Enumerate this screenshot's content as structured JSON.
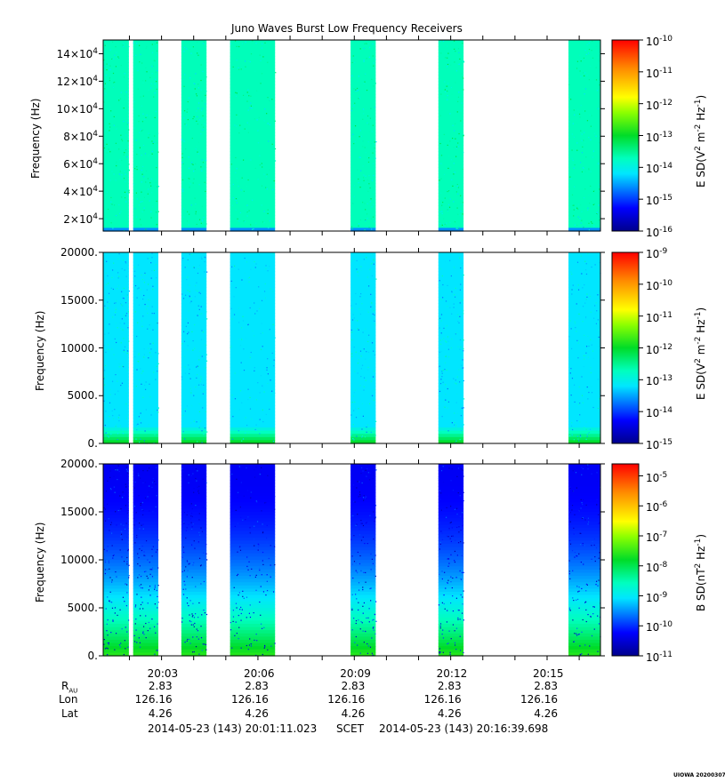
{
  "chart_data": {
    "title": "Juno Waves Burst Low Frequency Receivers",
    "type": "heatmap",
    "time_axis": {
      "tick_labels": [
        "20:03",
        "20:06",
        "20:09",
        "20:12",
        "20:15"
      ],
      "range_seconds": [
        "20:01:11.023",
        "20:16:39.698"
      ]
    },
    "data_blocks": [
      {
        "start": "20:01:11",
        "end": "20:01:59"
      },
      {
        "start": "20:02:07",
        "end": "20:02:54"
      },
      {
        "start": "20:03:37",
        "end": "20:04:24"
      },
      {
        "start": "20:05:08",
        "end": "20:06:32"
      },
      {
        "start": "20:08:53",
        "end": "20:09:40"
      },
      {
        "start": "20:11:37",
        "end": "20:12:24"
      },
      {
        "start": "20:15:40",
        "end": "20:16:39"
      }
    ],
    "panels": [
      {
        "ylabel": "Frequency (Hz)",
        "yticks": [
          {
            "value": 20000,
            "mant": "2",
            "exp": "4"
          },
          {
            "value": 40000,
            "mant": "4",
            "exp": "4"
          },
          {
            "value": 60000,
            "mant": "6",
            "exp": "4"
          },
          {
            "value": 80000,
            "mant": "8",
            "exp": "4"
          },
          {
            "value": 100000,
            "mant": "10",
            "exp": "4"
          },
          {
            "value": 120000,
            "mant": "12",
            "exp": "4"
          },
          {
            "value": 140000,
            "mant": "14",
            "exp": "4"
          }
        ],
        "ylim": [
          11000,
          150000
        ],
        "colorbar_label": "E SD(V^2 m^-2 Hz^-1)",
        "colorbar_exps": [
          "-10",
          "-11",
          "-12",
          "-13",
          "-14",
          "-15",
          "-16"
        ],
        "colorbar_range_exp": [
          -16,
          -10
        ],
        "mean_exp": -13.7
      },
      {
        "ylabel": "Frequency (Hz)",
        "yticks": [
          {
            "value": 0,
            "label": "0."
          },
          {
            "value": 5000,
            "label": "5000."
          },
          {
            "value": 10000,
            "label": "10000."
          },
          {
            "value": 15000,
            "label": "15000."
          },
          {
            "value": 20000,
            "label": "20000."
          }
        ],
        "ylim": [
          0,
          20000
        ],
        "colorbar_label": "E SD(V^2 m^-2 Hz^-1)",
        "colorbar_exps": [
          "-9",
          "-10",
          "-11",
          "-12",
          "-13",
          "-14",
          "-15"
        ],
        "colorbar_range_exp": [
          -15,
          -9
        ],
        "mean_exp": -13.2
      },
      {
        "ylabel": "Frequency (Hz)",
        "yticks": [
          {
            "value": 0,
            "label": "0."
          },
          {
            "value": 5000,
            "label": "5000."
          },
          {
            "value": 10000,
            "label": "10000."
          },
          {
            "value": 15000,
            "label": "15000."
          },
          {
            "value": 20000,
            "label": "20000."
          }
        ],
        "ylim": [
          0,
          20000
        ],
        "colorbar_label": "B SD(nT^2 Hz^-1)",
        "colorbar_exps": [
          "-5",
          "-6",
          "-7",
          "-8",
          "-9",
          "-10",
          "-11"
        ],
        "colorbar_range_exp": [
          -11,
          -4.6
        ],
        "mean_exp": -10.3
      }
    ],
    "ephemeris": {
      "labels": {
        "r": "R",
        "r_sub": "AU",
        "lon": "Lon",
        "lat": "Lat"
      },
      "values": [
        {
          "r": "2.83",
          "lon": "126.16",
          "lat": "4.26"
        },
        {
          "r": "2.83",
          "lon": "126.16",
          "lat": "4.26"
        },
        {
          "r": "2.83",
          "lon": "126.16",
          "lat": "4.26"
        },
        {
          "r": "2.83",
          "lon": "126.16",
          "lat": "4.26"
        },
        {
          "r": "2.83",
          "lon": "126.16",
          "lat": "4.26"
        }
      ]
    },
    "footer": {
      "start": "2014-05-23 (143) 20:01:11.023",
      "frame": "SCET",
      "end": "2014-05-23 (143) 20:16:39.698"
    },
    "credit": "UIOWA 20200307"
  }
}
